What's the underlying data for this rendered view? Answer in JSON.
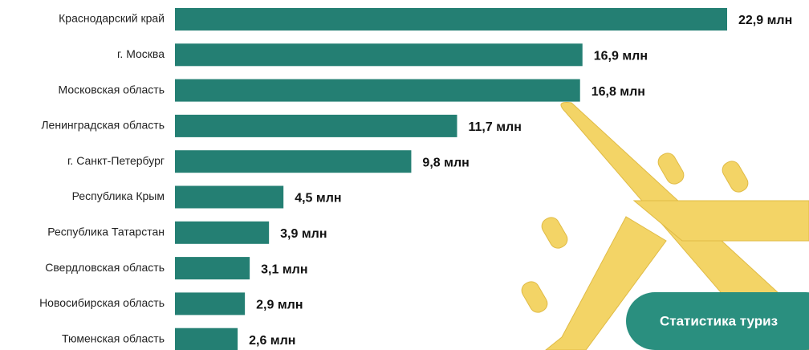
{
  "chart_data": {
    "type": "bar",
    "orientation": "horizontal",
    "categories": [
      "Краснодарский край",
      "г. Москва",
      "Московская область",
      "Ленинградская область",
      "г. Санкт-Петербург",
      "Республика Крым",
      "Республика Татарстан",
      "Свердловская область",
      "Новосибирская область",
      "Тюменская область"
    ],
    "values": [
      22.9,
      16.9,
      16.8,
      11.7,
      9.8,
      4.5,
      3.9,
      3.1,
      2.9,
      2.6
    ],
    "value_labels": [
      "22,9 млн",
      "16,9 млн",
      "16,8 млн",
      "11,7 млн",
      "9,8 млн",
      "4,5 млн",
      "3,9 млн",
      "3,1 млн",
      "2,9 млн",
      "2,6 млн"
    ],
    "color": "#247f73"
  },
  "button": {
    "label": "Статистика туриз"
  }
}
